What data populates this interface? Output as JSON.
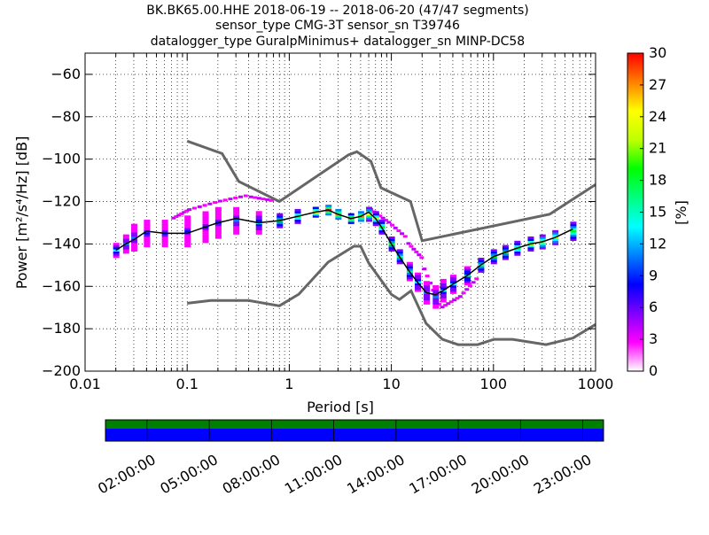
{
  "title_lines": [
    "BK.BK65.00.HHE   2018-06-19 -- 2018-06-20  (47/47 segments)",
    "sensor_type CMG-3T sensor_sn T39746",
    "datalogger_type GuralpMinimus+ datalogger_sn MINP-DC58"
  ],
  "colorbar": {
    "label": "[%]",
    "ticks": [
      "0",
      "3",
      "6",
      "9",
      "12",
      "15",
      "18",
      "21",
      "24",
      "27",
      "30"
    ],
    "range": [
      0,
      30
    ],
    "colors": [
      "#ffffff",
      "#ff00ff",
      "#8000ff",
      "#0000ff",
      "#0080ff",
      "#00ffff",
      "#00ff80",
      "#00ff00",
      "#c0ff00",
      "#ffff00",
      "#ff8000",
      "#ff0000"
    ]
  },
  "timeline": {
    "ticks": [
      "02:00:00",
      "05:00:00",
      "08:00:00",
      "11:00:00",
      "14:00:00",
      "17:00:00",
      "20:00:00",
      "23:00:00"
    ],
    "top_band_color": "#008000",
    "bottom_band_color": "#0000ff"
  },
  "chart_data": {
    "type": "heatmap",
    "title": "BK.BK65.00.HHE   2018-06-19 -- 2018-06-20  (47/47 segments)",
    "xlabel": "Period [s]",
    "ylabel": "Power [m²/s⁴/Hz] [dB]",
    "x_scale": "log",
    "xlim": [
      0.01,
      1000
    ],
    "ylim": [
      -200,
      -50
    ],
    "x_ticks": [
      0.01,
      0.1,
      1,
      10,
      100,
      1000
    ],
    "x_tick_labels": [
      "0.01",
      "0.1",
      "1",
      "10",
      "100",
      "1000"
    ],
    "y_ticks": [
      -200,
      -180,
      -160,
      -140,
      -120,
      -100,
      -80,
      -60
    ],
    "y_tick_labels": [
      "−200",
      "−180",
      "−160",
      "−140",
      "−120",
      "−100",
      "−80",
      "−60"
    ],
    "grid": true,
    "nhnm": {
      "x": [
        0.1,
        0.22,
        0.32,
        0.8,
        3.8,
        4.6,
        6.3,
        7.9,
        15.4,
        20,
        354.8,
        1000
      ],
      "y": [
        -91.5,
        -97.4,
        -110.5,
        -120,
        -98,
        -96.5,
        -101,
        -113.5,
        -120,
        -138.5,
        -126,
        -112
      ]
    },
    "nlnm": {
      "x": [
        0.1,
        0.17,
        0.4,
        0.8,
        1.24,
        2.4,
        4.3,
        5,
        6,
        10,
        12,
        15.6,
        21.9,
        31.6,
        45,
        70,
        101,
        154,
        328,
        600,
        1000
      ],
      "y": [
        -168,
        -166.7,
        -166.7,
        -169.2,
        -163.7,
        -148.6,
        -141.1,
        -141.1,
        -149,
        -163.8,
        -166.2,
        -162.1,
        -177.5,
        -185,
        -187.5,
        -187.5,
        -185,
        -185,
        -187.5,
        -184.4,
        -178
      ]
    },
    "mode": {
      "x": [
        0.02,
        0.025,
        0.03,
        0.04,
        0.06,
        0.1,
        0.15,
        0.2,
        0.3,
        0.5,
        0.8,
        1.2,
        1.8,
        2.4,
        3,
        4,
        5,
        6,
        7,
        8,
        10,
        12,
        15,
        18,
        22,
        27,
        32,
        40,
        55,
        75,
        100,
        130,
        170,
        230,
        300,
        400,
        600
      ],
      "y": [
        -143,
        -140,
        -138,
        -134,
        -135,
        -135,
        -132,
        -130,
        -128,
        -130,
        -129,
        -127,
        -125,
        -124,
        -126,
        -128,
        -127,
        -125,
        -128,
        -132,
        -140,
        -146,
        -153,
        -158,
        -163,
        -164,
        -162,
        -159,
        -155,
        -150,
        -146,
        -144,
        -142,
        -140,
        -139,
        -137,
        -133
      ]
    },
    "pdf_density": [
      {
        "p": 0.02,
        "y": -143,
        "w": 3,
        "pct": 10
      },
      {
        "p": 0.025,
        "y": -140,
        "w": 4,
        "pct": 8
      },
      {
        "p": 0.03,
        "y": -137,
        "w": 6,
        "pct": 6
      },
      {
        "p": 0.04,
        "y": -135,
        "w": 7,
        "pct": 5
      },
      {
        "p": 0.06,
        "y": -135,
        "w": 7,
        "pct": 5
      },
      {
        "p": 0.1,
        "y": -134,
        "w": 8,
        "pct": 5
      },
      {
        "p": 0.15,
        "y": -132,
        "w": 8,
        "pct": 5
      },
      {
        "p": 0.2,
        "y": -130,
        "w": 8,
        "pct": 5
      },
      {
        "p": 0.3,
        "y": -129,
        "w": 7,
        "pct": 6
      },
      {
        "p": 0.5,
        "y": -130,
        "w": 5,
        "pct": 9
      },
      {
        "p": 0.8,
        "y": -129,
        "w": 3,
        "pct": 14
      },
      {
        "p": 1.2,
        "y": -127,
        "w": 3,
        "pct": 16
      },
      {
        "p": 1.8,
        "y": -125,
        "w": 2,
        "pct": 20
      },
      {
        "p": 2.4,
        "y": -124,
        "w": 2,
        "pct": 25
      },
      {
        "p": 3,
        "y": -126,
        "w": 2,
        "pct": 24
      },
      {
        "p": 4,
        "y": -128,
        "w": 2,
        "pct": 22
      },
      {
        "p": 5,
        "y": -127,
        "w": 2,
        "pct": 24
      },
      {
        "p": 6,
        "y": -126,
        "w": 3,
        "pct": 20
      },
      {
        "p": 7,
        "y": -128,
        "w": 3,
        "pct": 17
      },
      {
        "p": 8,
        "y": -132,
        "w": 3,
        "pct": 16
      },
      {
        "p": 10,
        "y": -140,
        "w": 3,
        "pct": 14
      },
      {
        "p": 12,
        "y": -146,
        "w": 3,
        "pct": 13
      },
      {
        "p": 15,
        "y": -153,
        "w": 4,
        "pct": 12
      },
      {
        "p": 18,
        "y": -158,
        "w": 4,
        "pct": 10
      },
      {
        "p": 22,
        "y": -163,
        "w": 5,
        "pct": 8
      },
      {
        "p": 27,
        "y": -165,
        "w": 5,
        "pct": 8
      },
      {
        "p": 32,
        "y": -162,
        "w": 5,
        "pct": 9
      },
      {
        "p": 40,
        "y": -159,
        "w": 4,
        "pct": 10
      },
      {
        "p": 55,
        "y": -155,
        "w": 4,
        "pct": 11
      },
      {
        "p": 75,
        "y": -150,
        "w": 3,
        "pct": 13
      },
      {
        "p": 100,
        "y": -146,
        "w": 3,
        "pct": 14
      },
      {
        "p": 130,
        "y": -144,
        "w": 3,
        "pct": 15
      },
      {
        "p": 170,
        "y": -142,
        "w": 3,
        "pct": 16
      },
      {
        "p": 230,
        "y": -140,
        "w": 3,
        "pct": 17
      },
      {
        "p": 300,
        "y": -139,
        "w": 3,
        "pct": 18
      },
      {
        "p": 400,
        "y": -137,
        "w": 3,
        "pct": 18
      },
      {
        "p": 600,
        "y": -134,
        "w": 4,
        "pct": 16
      }
    ],
    "outliers": [
      {
        "p0": 0.07,
        "p1": 0.1,
        "y0": -128,
        "y1": -124
      },
      {
        "p0": 0.1,
        "p1": 0.2,
        "y0": -124,
        "y1": -120
      },
      {
        "p0": 0.2,
        "p1": 0.4,
        "y0": -120,
        "y1": -117
      },
      {
        "p0": 0.4,
        "p1": 0.7,
        "y0": -118,
        "y1": -120
      },
      {
        "p0": 6,
        "p1": 9,
        "y0": -124,
        "y1": -130
      },
      {
        "p0": 9,
        "p1": 14,
        "y0": -130,
        "y1": -138
      },
      {
        "p0": 14,
        "p1": 20,
        "y0": -140,
        "y1": -148
      },
      {
        "p0": 20,
        "p1": 30,
        "y0": -152,
        "y1": -172
      },
      {
        "p0": 30,
        "p1": 45,
        "y0": -170,
        "y1": -165
      },
      {
        "p0": 45,
        "p1": 70,
        "y0": -165,
        "y1": -155
      }
    ]
  }
}
